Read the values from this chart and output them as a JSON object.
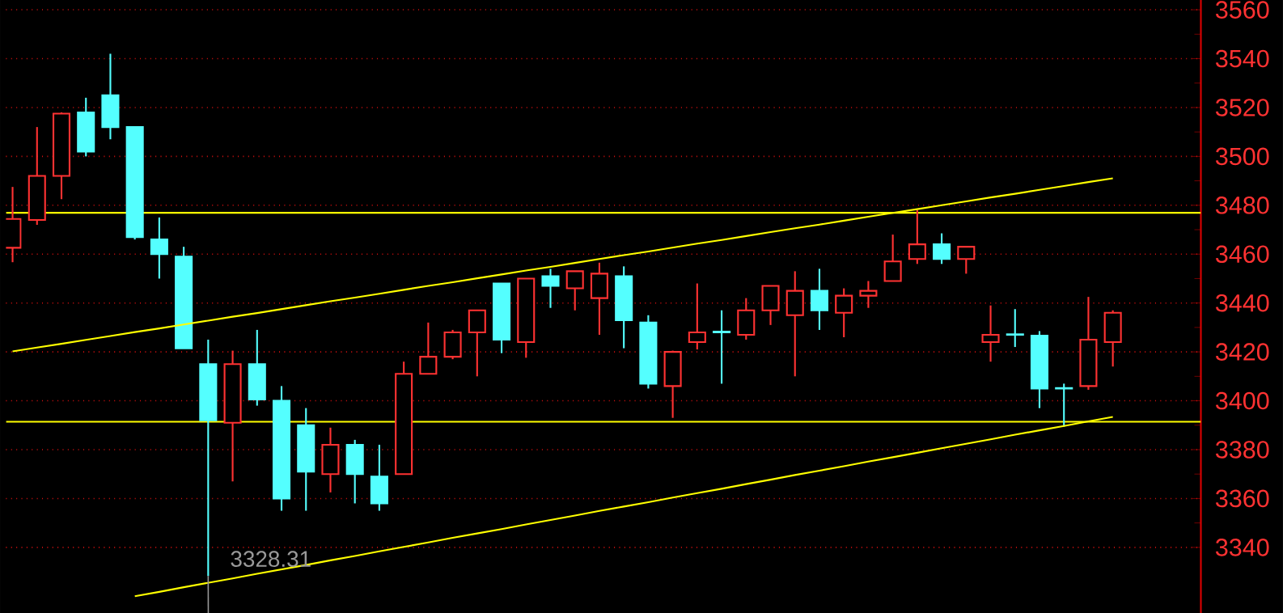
{
  "chart_data": {
    "type": "candlestick",
    "categories": [
      null,
      null,
      null,
      null,
      null,
      null,
      null,
      null,
      null,
      null,
      null,
      null,
      null,
      null,
      null,
      null,
      null,
      null,
      null,
      null,
      null,
      null,
      null,
      null,
      null,
      null,
      null,
      null,
      null,
      null,
      null,
      null,
      null,
      null,
      null,
      null,
      null,
      null,
      null,
      null,
      null,
      null,
      null,
      null,
      null,
      null
    ],
    "ohlc": [
      [
        3462.6,
        3487.5,
        3456.7,
        3474.4
      ],
      [
        3474,
        3512,
        3472,
        3492
      ],
      [
        3492,
        3518,
        3482.5,
        3517.5
      ],
      [
        3518,
        3524,
        3500,
        3502
      ],
      [
        3525,
        3542,
        3507,
        3512
      ],
      [
        3512,
        3512,
        3466,
        3467
      ],
      [
        3466,
        3475,
        3450,
        3460
      ],
      [
        3459,
        3463,
        3421.5,
        3421.5
      ],
      [
        3415,
        3425,
        3328.31,
        3392
      ],
      [
        3391,
        3420.5,
        3367,
        3415
      ],
      [
        3415,
        3429,
        3398,
        3400.5
      ],
      [
        3400,
        3406,
        3355,
        3360
      ],
      [
        3390,
        3397,
        3355,
        3371
      ],
      [
        3370,
        3389,
        3362.5,
        3382
      ],
      [
        3382,
        3384,
        3358,
        3370
      ],
      [
        3369,
        3382,
        3355,
        3358
      ],
      [
        3370,
        3416,
        3370,
        3411
      ],
      [
        3411,
        3432,
        3411,
        3418
      ],
      [
        3418,
        3429,
        3417,
        3428
      ],
      [
        3428,
        3437,
        3410,
        3437
      ],
      [
        3448,
        3448,
        3419.5,
        3425
      ],
      [
        3424,
        3450,
        3417.6,
        3450
      ],
      [
        3451,
        3454,
        3438,
        3447
      ],
      [
        3446,
        3453,
        3437,
        3453
      ],
      [
        3442,
        3456.5,
        3427,
        3452
      ],
      [
        3451,
        3455,
        3421.5,
        3433
      ],
      [
        3432,
        3435,
        3405,
        3407
      ],
      [
        3406,
        3420.5,
        3393,
        3420
      ],
      [
        3424,
        3448,
        3421,
        3428
      ],
      [
        3428.3,
        3437,
        3407,
        3428
      ],
      [
        3427,
        3442,
        3425,
        3437
      ],
      [
        3437,
        3447,
        3431,
        3447
      ],
      [
        3435,
        3453,
        3410,
        3445
      ],
      [
        3445,
        3454,
        3429,
        3437
      ],
      [
        3436,
        3446,
        3426,
        3443
      ],
      [
        3443,
        3449,
        3438,
        3445
      ],
      [
        3449,
        3468,
        3449,
        3457
      ],
      [
        3458,
        3478,
        3456,
        3464
      ],
      [
        3464,
        3468.5,
        3456,
        3458
      ],
      [
        3458,
        3463,
        3452,
        3463
      ],
      [
        3424,
        3439,
        3416,
        3427
      ],
      [
        3427.2,
        3437.5,
        3422,
        3427
      ],
      [
        3426.6,
        3428.5,
        3397,
        3405
      ],
      [
        3405.2,
        3407,
        3389.4,
        3405
      ],
      [
        3406,
        3442.5,
        3404.5,
        3425
      ],
      [
        3424,
        3437,
        3414,
        3436
      ]
    ],
    "colors": [
      "#ff3232",
      "#ff3232",
      "#ff3232",
      "#54ffff",
      "#54ffff",
      "#54ffff",
      "#54ffff",
      "#54ffff",
      "#54ffff",
      "#ff3232",
      "#54ffff",
      "#54ffff",
      "#54ffff",
      "#ff3232",
      "#54ffff",
      "#54ffff",
      "#ff3232",
      "#ff3232",
      "#ff3232",
      "#ff3232",
      "#54ffff",
      "#ff3232",
      "#54ffff",
      "#ff3232",
      "#ff3232",
      "#54ffff",
      "#54ffff",
      "#ff3232",
      "#ff3232",
      "#54ffff",
      "#ff3232",
      "#ff3232",
      "#ff3232",
      "#54ffff",
      "#ff3232",
      "#ff3232",
      "#ff3232",
      "#ff3232",
      "#54ffff",
      "#ff3232",
      "#ff3232",
      "#54ffff",
      "#54ffff",
      "#54ffff",
      "#ff3232",
      "#ff3232"
    ],
    "series": [
      {
        "type": "line",
        "values": [
          3420.2,
          3421.8,
          3423.3,
          3424.9,
          3426.5,
          3428.1,
          3429.6,
          3431.2,
          3432.8,
          3434.4,
          3435.9,
          3437.5,
          3439.1,
          3440.7,
          3442.2,
          3443.8,
          3445.4,
          3447.0,
          3448.5,
          3450.1,
          3451.7,
          3453.3,
          3454.8,
          3456.4,
          3458.0,
          3459.6,
          3461.1,
          3462.7,
          3464.3,
          3465.8,
          3467.4,
          3469.0,
          3470.6,
          3472.1,
          3473.7,
          3475.3,
          3476.9,
          3478.4,
          3480.0,
          3481.6,
          3483.2,
          3484.7,
          3486.3,
          3487.9,
          3489.5,
          3491.0
        ],
        "color": "#ffff00"
      },
      {
        "type": "line",
        "values": [
          null,
          null,
          null,
          null,
          null,
          3320.0,
          3321.8,
          3323.7,
          3325.5,
          3327.3,
          3329.2,
          3331.0,
          3332.8,
          3334.7,
          3336.5,
          3338.4,
          3340.2,
          3342.0,
          3343.9,
          3345.7,
          3347.5,
          3349.4,
          3351.2,
          3353.0,
          3354.9,
          3356.7,
          3358.5,
          3360.4,
          3362.2,
          3364.0,
          3365.9,
          3367.7,
          3369.6,
          3371.4,
          3373.2,
          3375.1,
          3376.9,
          3378.7,
          3380.6,
          3382.4,
          3384.2,
          3386.1,
          3387.9,
          3389.7,
          3391.6,
          3393.4
        ],
        "color": "#ffff00"
      }
    ],
    "ref_lines": [
      {
        "axis": "y",
        "value": 3476.9,
        "color": "#ffff00"
      },
      {
        "axis": "y",
        "value": 3391.4,
        "color": "#ffff00"
      }
    ],
    "annotations": [
      {
        "text": "3328.31",
        "y": 3328.31
      }
    ],
    "ylim": [
      3313,
      3564
    ],
    "yticks": [
      3340,
      3360,
      3380,
      3400,
      3420,
      3440,
      3460,
      3480,
      3500,
      3520,
      3540,
      3560
    ],
    "grid": "y"
  }
}
